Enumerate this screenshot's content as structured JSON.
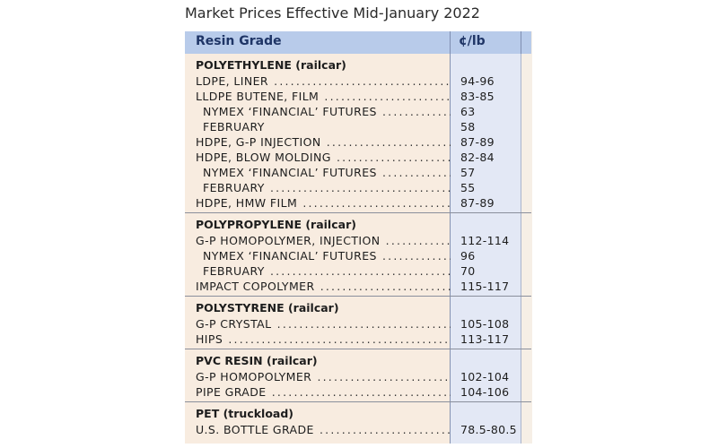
{
  "title": "Market Prices Effective Mid-January 2022",
  "header": {
    "col_grade": "Resin Grade",
    "col_price": "¢/lb"
  },
  "sections": [
    {
      "title": "POLYETHYLENE (railcar)",
      "rows": [
        {
          "label": "LDPE, LINER",
          "value": "94-96",
          "indent": false,
          "dots": true
        },
        {
          "label": "LLDPE BUTENE, FILM",
          "value": "83-85",
          "indent": false,
          "dots": true
        },
        {
          "label": "NYMEX ‘FINANCIAL’ FUTURES",
          "value": "63",
          "indent": true,
          "dots": true
        },
        {
          "label": "FEBRUARY",
          "value": "58",
          "indent": true,
          "dots": false
        },
        {
          "label": "HDPE, G-P INJECTION",
          "value": "87-89",
          "indent": false,
          "dots": true
        },
        {
          "label": "HDPE, BLOW MOLDING",
          "value": "82-84",
          "indent": false,
          "dots": true
        },
        {
          "label": "NYMEX ‘FINANCIAL’ FUTURES",
          "value": "57",
          "indent": true,
          "dots": true
        },
        {
          "label": "FEBRUARY",
          "value": "55",
          "indent": true,
          "dots": true
        },
        {
          "label": "HDPE, HMW FILM",
          "value": "87-89",
          "indent": false,
          "dots": true
        }
      ]
    },
    {
      "title": "POLYPROPYLENE (railcar)",
      "rows": [
        {
          "label": "G-P HOMOPOLYMER, INJECTION",
          "value": "112-114",
          "indent": false,
          "dots": true
        },
        {
          "label": "NYMEX ‘FINANCIAL’ FUTURES",
          "value": "96",
          "indent": true,
          "dots": true
        },
        {
          "label": "FEBRUARY",
          "value": "70",
          "indent": true,
          "dots": true
        },
        {
          "label": "IMPACT COPOLYMER",
          "value": "115-117",
          "indent": false,
          "dots": true
        }
      ]
    },
    {
      "title": "POLYSTYRENE (railcar)",
      "rows": [
        {
          "label": "G-P CRYSTAL",
          "value": "105-108",
          "indent": false,
          "dots": true
        },
        {
          "label": "HIPS",
          "value": "113-117",
          "indent": false,
          "dots": true
        }
      ]
    },
    {
      "title": "PVC RESIN (railcar)",
      "rows": [
        {
          "label": "G-P HOMOPOLYMER",
          "value": "102-104",
          "indent": false,
          "dots": true
        },
        {
          "label": "PIPE GRADE",
          "value": "104-106",
          "indent": false,
          "dots": true
        }
      ]
    },
    {
      "title": "PET (truckload)",
      "rows": [
        {
          "label": "U.S. BOTTLE GRADE",
          "value": "78.5-80.5",
          "indent": false,
          "dots": true
        }
      ]
    }
  ]
}
